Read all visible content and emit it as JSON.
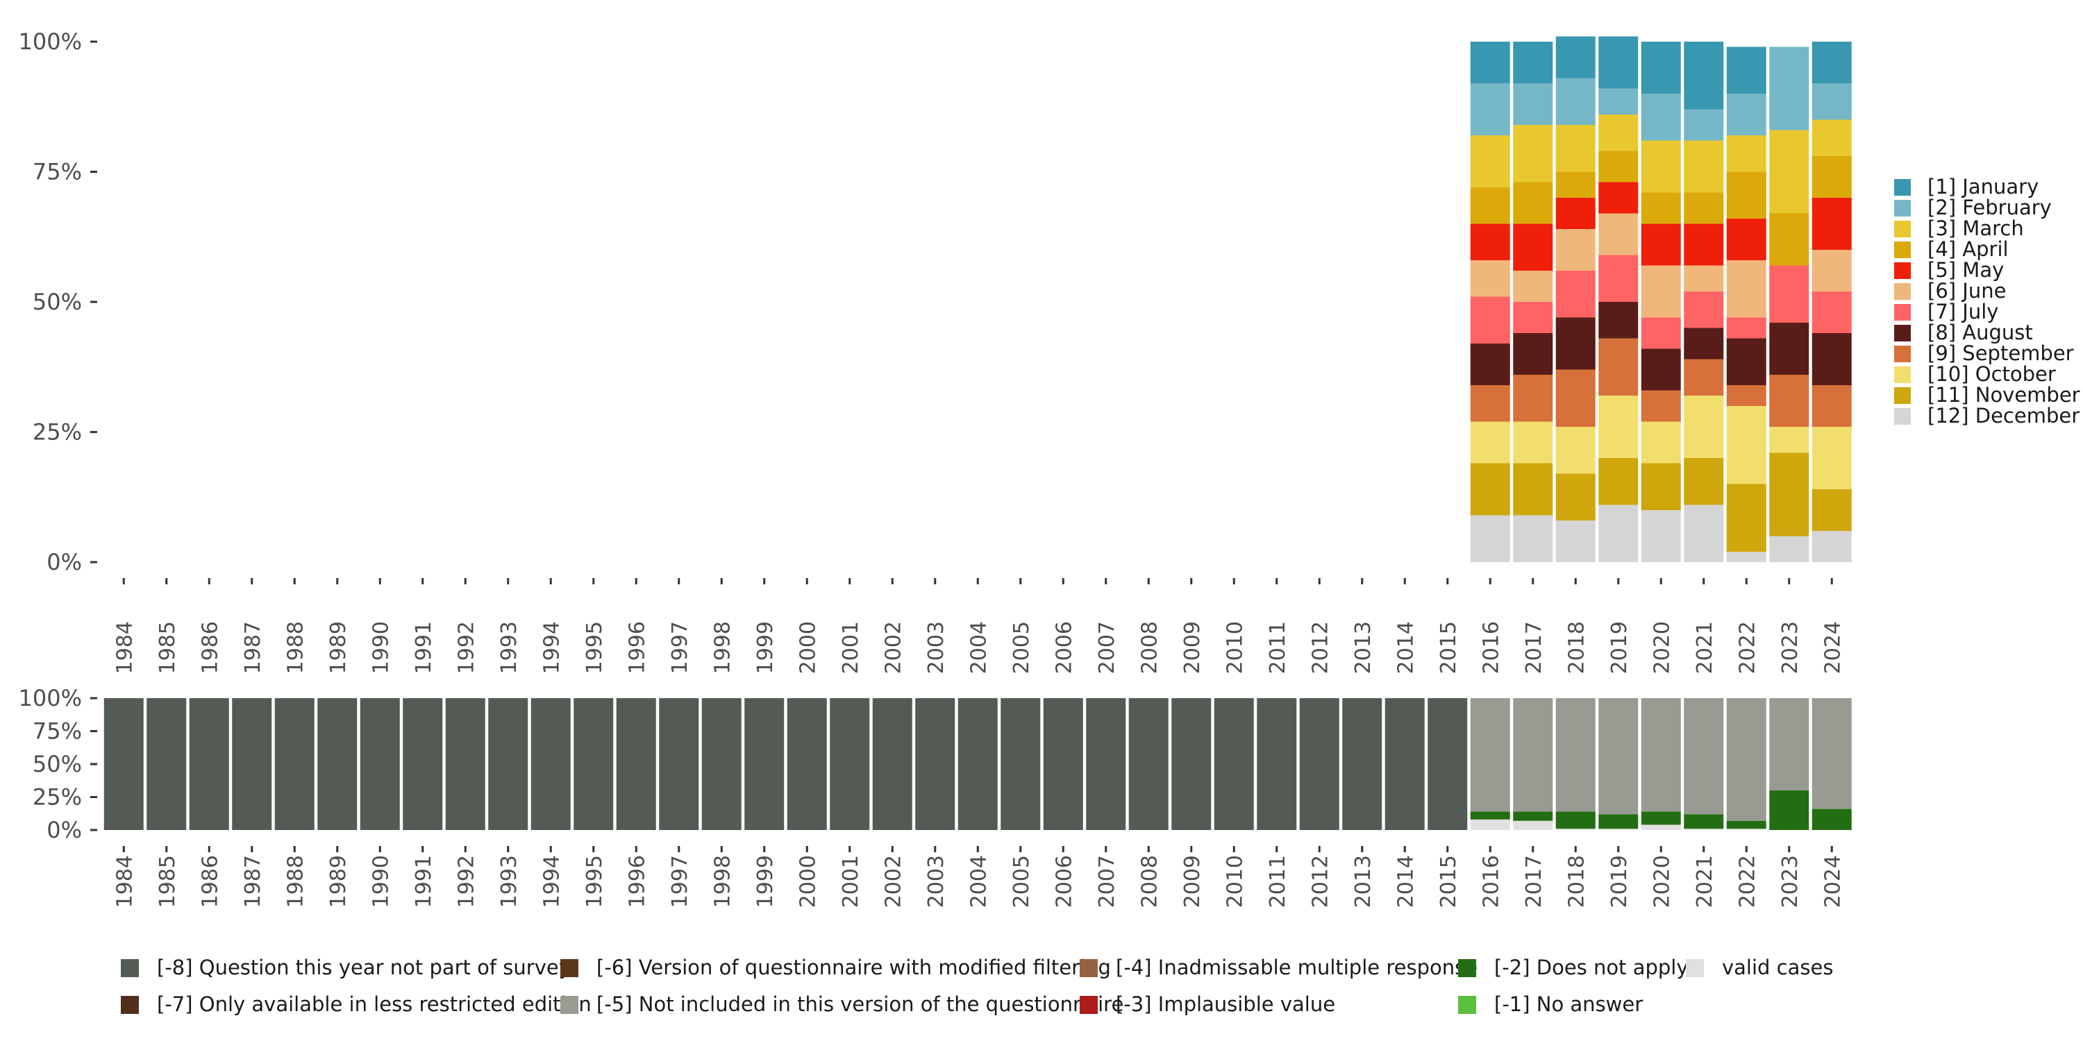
{
  "chart_data": [
    {
      "type": "bar",
      "stacked": true,
      "percent": true,
      "categories": [
        "1984",
        "1985",
        "1986",
        "1987",
        "1988",
        "1989",
        "1990",
        "1991",
        "1992",
        "1993",
        "1994",
        "1995",
        "1996",
        "1997",
        "1998",
        "1999",
        "2000",
        "2001",
        "2002",
        "2003",
        "2004",
        "2005",
        "2006",
        "2007",
        "2008",
        "2009",
        "2010",
        "2011",
        "2012",
        "2013",
        "2014",
        "2015",
        "2016",
        "2017",
        "2018",
        "2019",
        "2020",
        "2021",
        "2022",
        "2023",
        "2024"
      ],
      "ylim": [
        0,
        100
      ],
      "yticks": [
        "0%",
        "25%",
        "50%",
        "75%",
        "100%"
      ],
      "grid": false,
      "legend_position": "right",
      "stack_order": "bottom-to-top: [12] December first, [1] January last",
      "series": [
        {
          "name": "[1] January",
          "color": "#3A97B2",
          "values": {
            "2016": 8,
            "2017": 8,
            "2018": 8,
            "2019": 10,
            "2020": 10,
            "2021": 13,
            "2022": 9,
            "2023": 0,
            "2024": 8
          }
        },
        {
          "name": "[2] February",
          "color": "#76B7C7",
          "values": {
            "2016": 10,
            "2017": 8,
            "2018": 9,
            "2019": 5,
            "2020": 9,
            "2021": 6,
            "2022": 8,
            "2023": 16,
            "2024": 7
          }
        },
        {
          "name": "[3] March",
          "color": "#E9C82F",
          "values": {
            "2016": 10,
            "2017": 11,
            "2018": 9,
            "2019": 7,
            "2020": 10,
            "2021": 10,
            "2022": 7,
            "2023": 16,
            "2024": 7
          }
        },
        {
          "name": "[4] April",
          "color": "#DBA909",
          "values": {
            "2016": 7,
            "2017": 8,
            "2018": 5,
            "2019": 6,
            "2020": 6,
            "2021": 6,
            "2022": 9,
            "2023": 10,
            "2024": 8
          }
        },
        {
          "name": "[5] May",
          "color": "#F01F0A",
          "values": {
            "2016": 7,
            "2017": 9,
            "2018": 6,
            "2019": 6,
            "2020": 8,
            "2021": 8,
            "2022": 8,
            "2023": 0,
            "2024": 10
          }
        },
        {
          "name": "[6] June",
          "color": "#F0B77C",
          "values": {
            "2016": 7,
            "2017": 6,
            "2018": 8,
            "2019": 8,
            "2020": 10,
            "2021": 5,
            "2022": 11,
            "2023": 0,
            "2024": 8
          }
        },
        {
          "name": "[7] July",
          "color": "#FF6464",
          "values": {
            "2016": 9,
            "2017": 6,
            "2018": 9,
            "2019": 9,
            "2020": 6,
            "2021": 7,
            "2022": 4,
            "2023": 11,
            "2024": 8
          }
        },
        {
          "name": "[8] August",
          "color": "#591D19",
          "values": {
            "2016": 8,
            "2017": 8,
            "2018": 10,
            "2019": 7,
            "2020": 8,
            "2021": 6,
            "2022": 9,
            "2023": 10,
            "2024": 10
          }
        },
        {
          "name": "[9] September",
          "color": "#D7703A",
          "values": {
            "2016": 7,
            "2017": 9,
            "2018": 11,
            "2019": 11,
            "2020": 6,
            "2021": 7,
            "2022": 4,
            "2023": 10,
            "2024": 8
          }
        },
        {
          "name": "[10] October",
          "color": "#F2DE6E",
          "values": {
            "2016": 8,
            "2017": 8,
            "2018": 9,
            "2019": 12,
            "2020": 8,
            "2021": 12,
            "2022": 15,
            "2023": 5,
            "2024": 12
          }
        },
        {
          "name": "[11] November",
          "color": "#CFA60C",
          "values": {
            "2016": 10,
            "2017": 10,
            "2018": 9,
            "2019": 9,
            "2020": 9,
            "2021": 9,
            "2022": 13,
            "2023": 16,
            "2024": 8
          }
        },
        {
          "name": "[12] December",
          "color": "#D5D5D5",
          "values": {
            "2016": 9,
            "2017": 9,
            "2018": 8,
            "2019": 11,
            "2020": 10,
            "2021": 11,
            "2022": 2,
            "2023": 5,
            "2024": 6
          }
        }
      ]
    },
    {
      "type": "bar",
      "stacked": true,
      "percent": true,
      "categories": [
        "1984",
        "1985",
        "1986",
        "1987",
        "1988",
        "1989",
        "1990",
        "1991",
        "1992",
        "1993",
        "1994",
        "1995",
        "1996",
        "1997",
        "1998",
        "1999",
        "2000",
        "2001",
        "2002",
        "2003",
        "2004",
        "2005",
        "2006",
        "2007",
        "2008",
        "2009",
        "2010",
        "2011",
        "2012",
        "2013",
        "2014",
        "2015",
        "2016",
        "2017",
        "2018",
        "2019",
        "2020",
        "2021",
        "2022",
        "2023",
        "2024"
      ],
      "ylim": [
        0,
        100
      ],
      "yticks": [
        "0%",
        "25%",
        "50%",
        "75%",
        "100%"
      ],
      "grid": false,
      "legend_position": "bottom",
      "series": [
        {
          "name": "valid cases",
          "color": "#E0E0E0",
          "values": {
            "2016": 8,
            "2017": 7,
            "2018": 1,
            "2019": 1,
            "2020": 4,
            "2021": 1,
            "2022": 1,
            "2023": 0,
            "2024": 0
          }
        },
        {
          "name": "[-1] No answer",
          "color": "#5BBF3E",
          "values": {}
        },
        {
          "name": "[-2] Does not apply",
          "color": "#236E12",
          "values": {
            "2016": 6,
            "2017": 7,
            "2018": 13,
            "2019": 11,
            "2020": 10,
            "2021": 11,
            "2022": 6,
            "2023": 30,
            "2024": 16
          }
        },
        {
          "name": "[-3] Implausible value",
          "color": "#AD1B1B",
          "values": {}
        },
        {
          "name": "[-4] Inadmissable multiple response",
          "color": "#93643F",
          "values": {}
        },
        {
          "name": "[-5] Not included in this version of the questionnaire",
          "color": "#989B92",
          "values": {
            "2016": 86,
            "2017": 86,
            "2018": 86,
            "2019": 88,
            "2020": 86,
            "2021": 88,
            "2022": 93,
            "2023": 70,
            "2024": 84
          }
        },
        {
          "name": "[-6] Version of questionnaire with modified filtering",
          "color": "#5B3716",
          "values": {}
        },
        {
          "name": "[-7] Only available in less restricted edition",
          "color": "#50301C",
          "values": {}
        },
        {
          "name": "[-8] Question this year not part of survey",
          "color": "#545A54",
          "values": {
            "1984": 100,
            "1985": 100,
            "1986": 100,
            "1987": 100,
            "1988": 100,
            "1989": 100,
            "1990": 100,
            "1991": 100,
            "1992": 100,
            "1993": 100,
            "1994": 100,
            "1995": 100,
            "1996": 100,
            "1997": 100,
            "1998": 100,
            "1999": 100,
            "2000": 100,
            "2001": 100,
            "2002": 100,
            "2003": 100,
            "2004": 100,
            "2005": 100,
            "2006": 100,
            "2007": 100,
            "2008": 100,
            "2009": 100,
            "2010": 100,
            "2011": 100,
            "2012": 100,
            "2013": 100,
            "2014": 100,
            "2015": 100
          }
        }
      ]
    }
  ],
  "bottom_legend": {
    "rows": [
      [
        {
          "label": "[-8] Question this year not part of survey",
          "color": "#545A54"
        },
        {
          "label": "[-6] Version of questionnaire with modified filtering",
          "color": "#5B3716"
        },
        {
          "label": "[-4] Inadmissable multiple response",
          "color": "#93643F"
        },
        {
          "label": "[-2] Does not apply",
          "color": "#236E12"
        },
        {
          "label": "valid cases",
          "color": "#E0E0E0"
        }
      ],
      [
        {
          "label": "[-7] Only available in less restricted edition",
          "color": "#50301C"
        },
        {
          "label": "[-5] Not included in this version of the questionnaire",
          "color": "#989B92"
        },
        {
          "label": "[-3] Implausible value",
          "color": "#AD1B1B"
        },
        {
          "label": "[-1] No answer",
          "color": "#5BBF3E"
        }
      ]
    ]
  }
}
